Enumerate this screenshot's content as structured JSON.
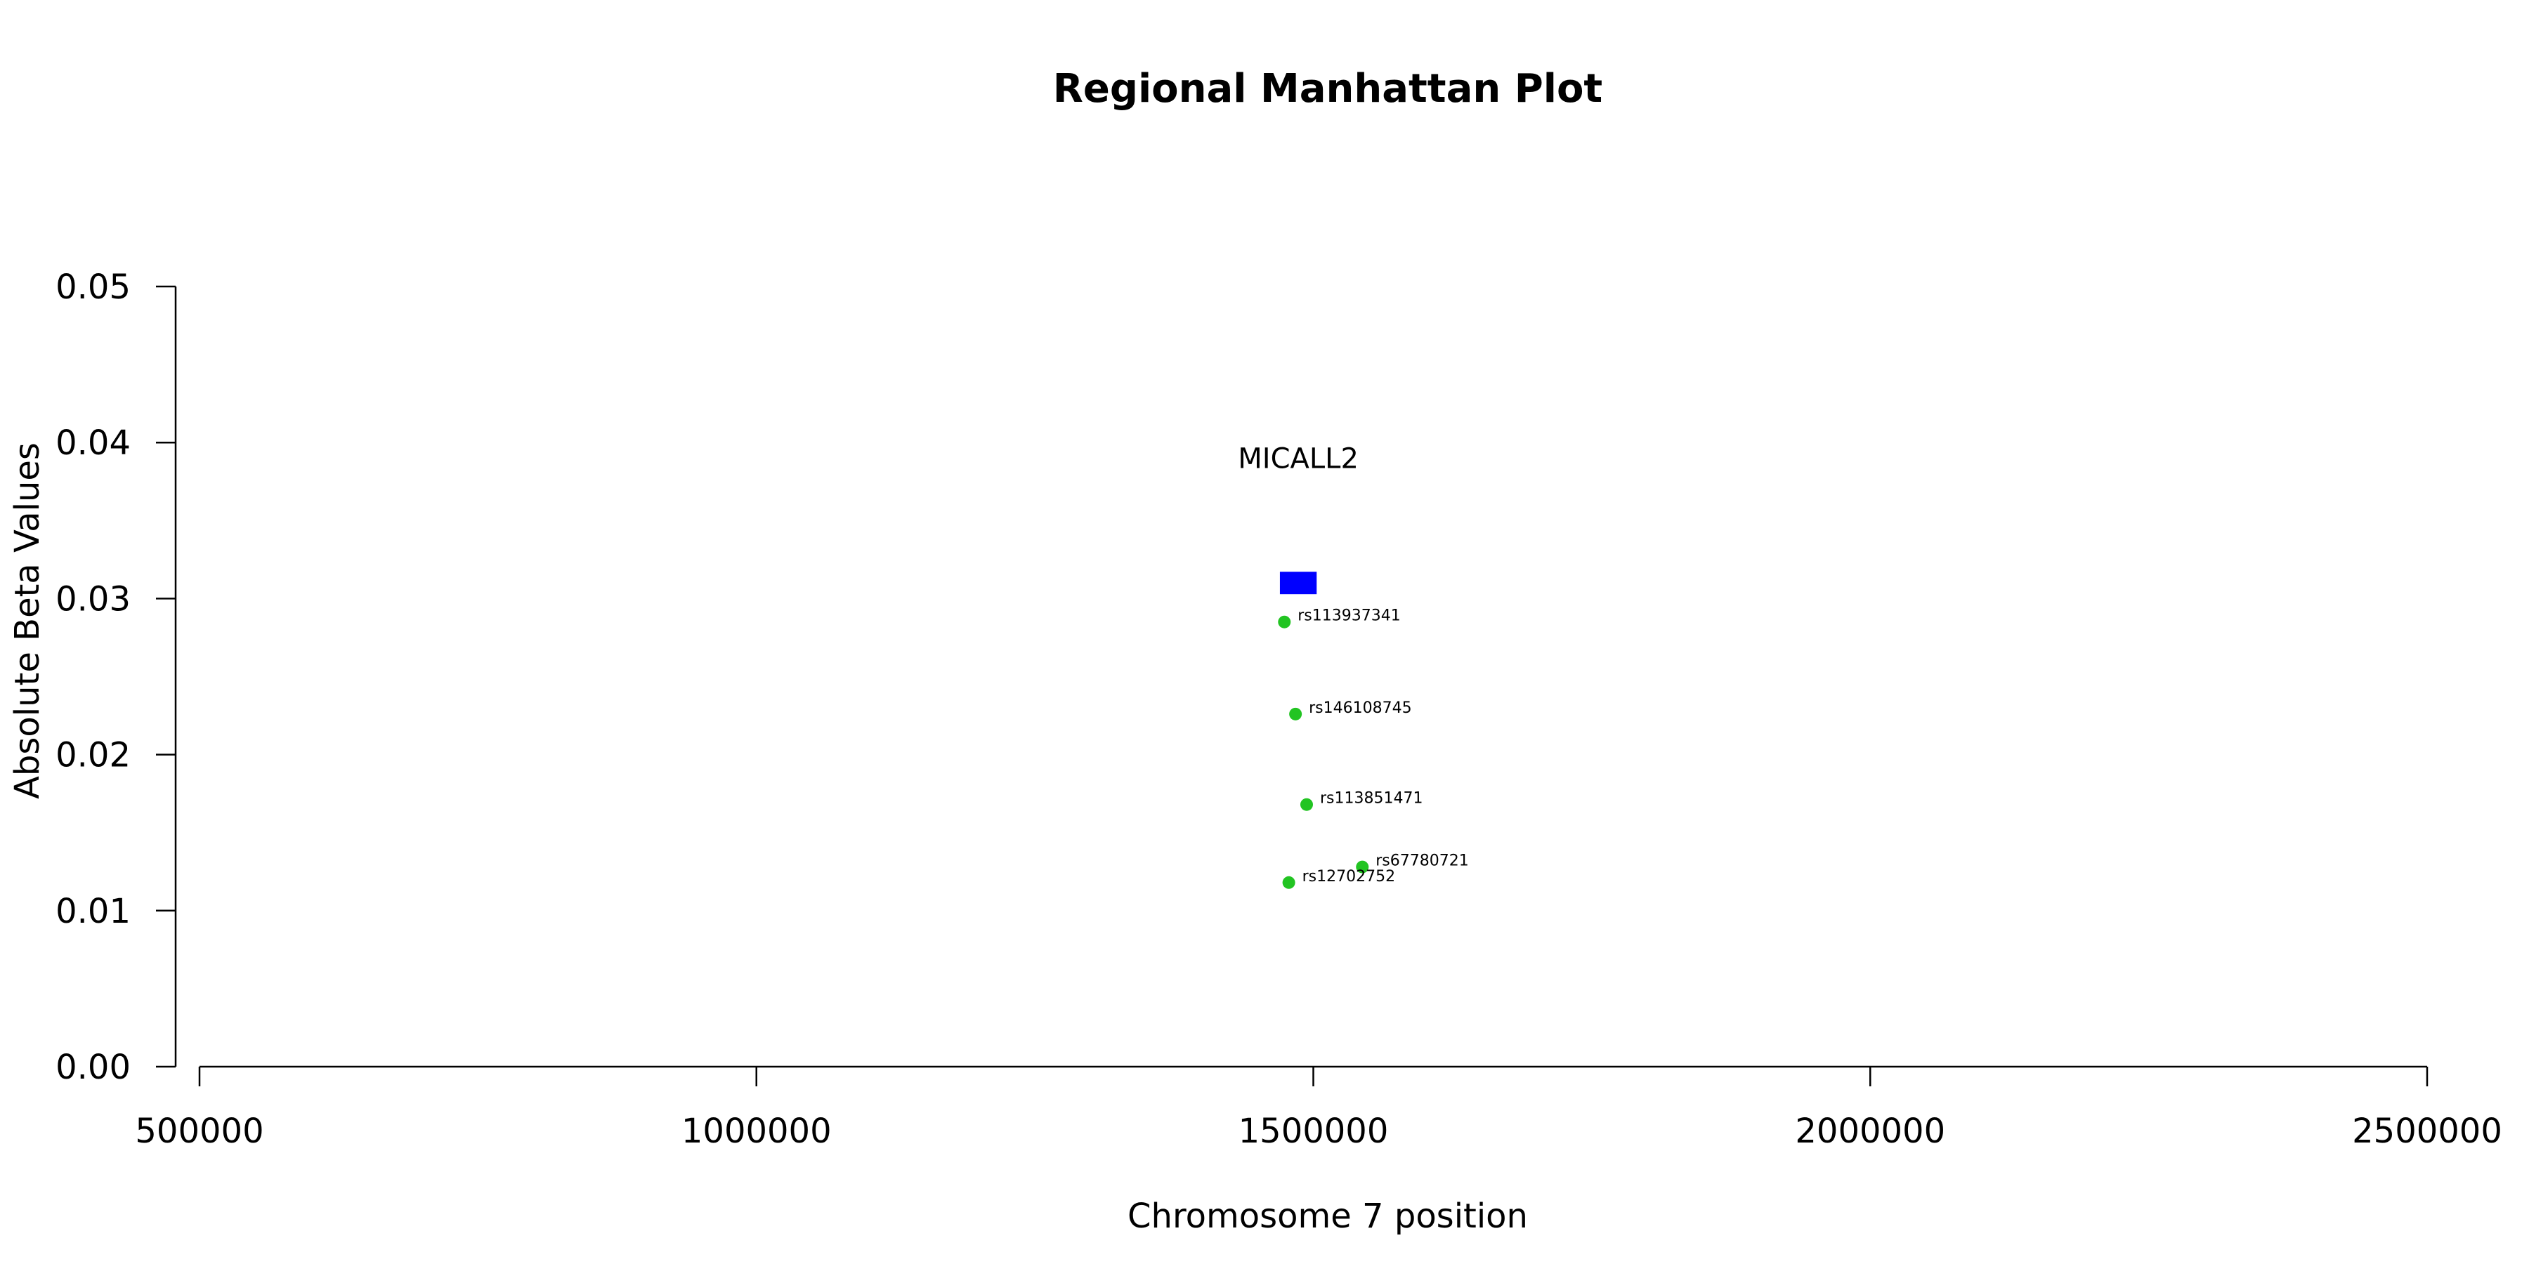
{
  "chart_data": {
    "type": "scatter",
    "title": "Regional Manhattan Plot",
    "xlabel": "Chromosome 7 position",
    "ylabel": "Absolute Beta Values",
    "xlim": [
      500000,
      2500000
    ],
    "ylim": [
      0.0,
      0.05
    ],
    "x_ticks": [
      "500000",
      "1000000",
      "1500000",
      "2000000",
      "2500000"
    ],
    "x_tick_values": [
      500000,
      1000000,
      1500000,
      2000000,
      2500000
    ],
    "y_ticks": [
      "0.00",
      "0.01",
      "0.02",
      "0.03",
      "0.04",
      "0.05"
    ],
    "y_tick_values": [
      0.0,
      0.01,
      0.02,
      0.03,
      0.04,
      0.05
    ],
    "grid": false,
    "legend": "none",
    "point_color": "#22c422",
    "gene_color": "#0000ff",
    "genes": [
      {
        "name": "MICALL2",
        "start": 1470000,
        "end": 1503000,
        "y": 0.031,
        "label_y": 0.038
      }
    ],
    "points": [
      {
        "label": "rs113937341",
        "x": 1474000,
        "y": 0.0285
      },
      {
        "label": "rs146108745",
        "x": 1484000,
        "y": 0.0226
      },
      {
        "label": "rs113851471",
        "x": 1494000,
        "y": 0.0168
      },
      {
        "label": "rs67780721",
        "x": 1544000,
        "y": 0.0128
      },
      {
        "label": "rs12702752",
        "x": 1478000,
        "y": 0.0118
      }
    ]
  }
}
